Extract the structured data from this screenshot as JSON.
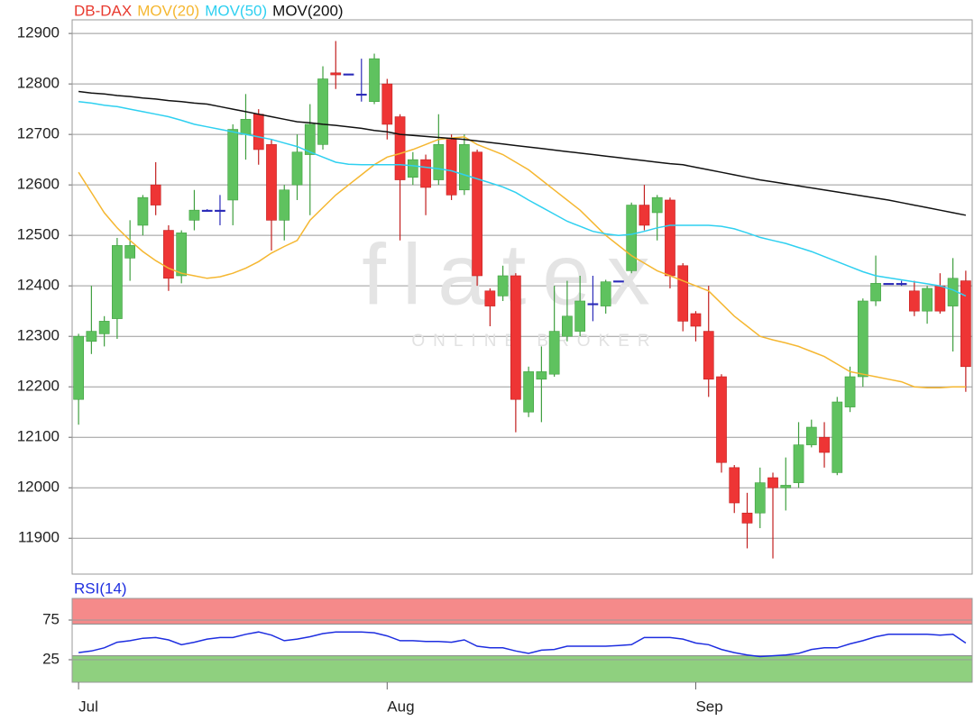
{
  "chart_data": [
    {
      "type": "candlestick",
      "name": "DB-DAX",
      "color": "#e83a2f",
      "color_up": "#5fc25f",
      "color_down": "#ee3535",
      "color_flat": "#2a2ab8",
      "watermark": [
        "flatex",
        "ONLINE BROKER"
      ],
      "categories": [
        "Jul",
        null,
        null,
        null,
        null,
        null,
        null,
        null,
        null,
        null,
        null,
        null,
        null,
        null,
        null,
        null,
        null,
        null,
        null,
        null,
        null,
        null,
        null,
        null,
        "Aug",
        null,
        null,
        null,
        null,
        null,
        null,
        null,
        null,
        null,
        null,
        null,
        null,
        null,
        null,
        null,
        null,
        null,
        null,
        null,
        null,
        null,
        null,
        null,
        "Sep",
        null,
        null,
        null,
        null,
        null,
        null,
        null,
        null,
        null,
        null,
        null,
        null,
        null,
        null,
        null,
        null,
        null,
        null,
        null,
        null,
        null
      ],
      "open": [
        12175,
        12290,
        12305,
        12335,
        12455,
        12520,
        12600,
        12510,
        12420,
        12530,
        12550,
        12550,
        12570,
        12700,
        12740,
        12680,
        12530,
        12600,
        12660,
        12680,
        12822,
        12820,
        12780,
        12765,
        12800,
        12735,
        12615,
        12650,
        12610,
        12690,
        12590,
        12665,
        12390,
        12380,
        12420,
        12150,
        12215,
        12225,
        12300,
        12310,
        12365,
        12360,
        12410,
        12430,
        12560,
        12545,
        12570,
        12440,
        12345,
        12310,
        12220,
        12040,
        11950,
        11950,
        12020,
        12000,
        12010,
        12085,
        12100,
        12030,
        12160,
        12220,
        12370,
        12405,
        12405,
        12390,
        12350,
        12400,
        12360,
        12410
      ],
      "high": [
        12305,
        12400,
        12340,
        12495,
        12530,
        12580,
        12645,
        12520,
        12510,
        12590,
        12552,
        12580,
        12720,
        12780,
        12750,
        12690,
        12600,
        12700,
        12760,
        12835,
        12885,
        12820,
        12850,
        12860,
        12810,
        12740,
        12665,
        12660,
        12740,
        12700,
        12700,
        12670,
        12395,
        12440,
        12425,
        12240,
        12280,
        12400,
        12410,
        12420,
        12420,
        12412,
        12410,
        12565,
        12600,
        12580,
        12575,
        12445,
        12350,
        12400,
        12225,
        12045,
        11990,
        12040,
        12030,
        12060,
        12130,
        12135,
        12130,
        12180,
        12240,
        12375,
        12460,
        12405,
        12410,
        12410,
        12400,
        12425,
        12455,
        12430
      ],
      "low": [
        12125,
        12265,
        12280,
        12295,
        12410,
        12500,
        12540,
        12390,
        12405,
        12510,
        12548,
        12520,
        12520,
        12650,
        12640,
        12470,
        12490,
        12570,
        12540,
        12670,
        12790,
        12820,
        12765,
        12760,
        12690,
        12490,
        12600,
        12540,
        12600,
        12570,
        12580,
        12400,
        12320,
        12370,
        12110,
        12140,
        12130,
        12220,
        12290,
        12300,
        12330,
        12345,
        12410,
        12425,
        12510,
        12490,
        12395,
        12310,
        12290,
        12180,
        12030,
        11950,
        11880,
        11920,
        11860,
        11955,
        12000,
        12080,
        12040,
        12025,
        12150,
        12200,
        12360,
        12405,
        12400,
        12340,
        12325,
        12345,
        12270,
        12190
      ],
      "close": [
        12300,
        12310,
        12330,
        12480,
        12480,
        12575,
        12560,
        12415,
        12505,
        12550,
        12550,
        12550,
        12710,
        12730,
        12670,
        12530,
        12590,
        12665,
        12720,
        12810,
        12818,
        12820,
        12780,
        12850,
        12720,
        12610,
        12650,
        12595,
        12680,
        12580,
        12680,
        12420,
        12360,
        12420,
        12175,
        12230,
        12230,
        12310,
        12340,
        12370,
        12365,
        12408,
        12410,
        12560,
        12520,
        12575,
        12420,
        12330,
        12320,
        12215,
        12050,
        11970,
        11930,
        12010,
        12000,
        12005,
        12085,
        12120,
        12070,
        12170,
        12220,
        12370,
        12405,
        12405,
        12405,
        12350,
        12395,
        12350,
        12415,
        12240
      ],
      "overlays": [
        {
          "name": "MOV(20)",
          "color": "#f5b731",
          "values": [
            12625,
            12585,
            12545,
            12515,
            12490,
            12468,
            12450,
            12435,
            12425,
            12420,
            12415,
            12418,
            12425,
            12435,
            12448,
            12465,
            12478,
            12490,
            12530,
            12555,
            12580,
            12600,
            12620,
            12640,
            12655,
            12662,
            12670,
            12680,
            12690,
            12693,
            12695,
            12680,
            12670,
            12660,
            12645,
            12630,
            12610,
            12590,
            12570,
            12550,
            12525,
            12500,
            12480,
            12460,
            12445,
            12430,
            12420,
            12410,
            12400,
            12390,
            12365,
            12340,
            12320,
            12300,
            12293,
            12287,
            12280,
            12270,
            12260,
            12245,
            12230,
            12225,
            12220,
            12215,
            12210,
            12200,
            12198,
            12198,
            12200,
            12200
          ]
        },
        {
          "name": "MOV(50)",
          "color": "#2fd0f0",
          "values": [
            12765,
            12762,
            12758,
            12755,
            12750,
            12745,
            12740,
            12735,
            12728,
            12720,
            12715,
            12710,
            12705,
            12700,
            12695,
            12690,
            12683,
            12676,
            12665,
            12655,
            12645,
            12641,
            12640,
            12640,
            12640,
            12640,
            12638,
            12635,
            12632,
            12628,
            12620,
            12612,
            12604,
            12596,
            12585,
            12570,
            12556,
            12542,
            12528,
            12518,
            12508,
            12503,
            12500,
            12502,
            12508,
            12515,
            12520,
            12520,
            12520,
            12520,
            12518,
            12513,
            12505,
            12496,
            12490,
            12484,
            12476,
            12468,
            12458,
            12448,
            12438,
            12428,
            12420,
            12416,
            12412,
            12408,
            12404,
            12400,
            12392,
            12380
          ]
        },
        {
          "name": "MOV(200)",
          "color": "#111111",
          "values": [
            12785,
            12782,
            12780,
            12777,
            12775,
            12772,
            12770,
            12767,
            12765,
            12762,
            12760,
            12755,
            12750,
            12745,
            12740,
            12735,
            12730,
            12725,
            12723,
            12720,
            12718,
            12715,
            12712,
            12708,
            12705,
            12700,
            12698,
            12696,
            12694,
            12692,
            12690,
            12687,
            12684,
            12681,
            12678,
            12675,
            12672,
            12669,
            12666,
            12663,
            12660,
            12657,
            12654,
            12651,
            12648,
            12645,
            12642,
            12640,
            12635,
            12630,
            12625,
            12620,
            12615,
            12610,
            12606,
            12602,
            12598,
            12594,
            12590,
            12586,
            12582,
            12578,
            12574,
            12570,
            12565,
            12560,
            12555,
            12550,
            12545,
            12540
          ]
        }
      ],
      "ylim": [
        11829,
        12927
      ],
      "yticks": [
        11900,
        12000,
        12100,
        12200,
        12300,
        12400,
        12500,
        12600,
        12700,
        12800,
        12900
      ],
      "grid": true
    },
    {
      "type": "line",
      "series": [
        {
          "name": "RSI(14)",
          "color": "#1e2ee0",
          "values": [
            34,
            36,
            40,
            47,
            49,
            52,
            53,
            50,
            44,
            47,
            51,
            53,
            53,
            57,
            60,
            56,
            49,
            51,
            54,
            58,
            60,
            60,
            60,
            59,
            55,
            49,
            49,
            48,
            48,
            47,
            50,
            42,
            40,
            40,
            36,
            33,
            37,
            38,
            42,
            42,
            42,
            42,
            43,
            44,
            53,
            53,
            53,
            51,
            46,
            44,
            38,
            34,
            31,
            29,
            30,
            31,
            33,
            38,
            40,
            40,
            45,
            49,
            54,
            57,
            57,
            57,
            57,
            56,
            57,
            46
          ]
        }
      ],
      "bands": [
        {
          "from": 70,
          "to": 100,
          "color": "#f58a8a"
        },
        {
          "from": 0,
          "to": 30,
          "color": "#8fd07f"
        }
      ],
      "ylim": [
        0,
        100
      ],
      "yticks": [
        25,
        75
      ],
      "grid": true
    }
  ]
}
